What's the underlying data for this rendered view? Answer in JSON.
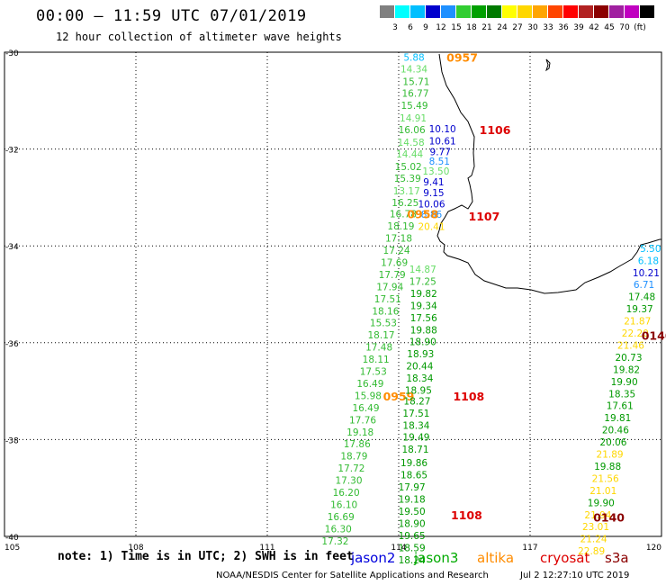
{
  "header": {
    "title": "00:00 – 11:59 UTC 07/01/2019",
    "subtitle": "12 hour collection of altimeter wave heights"
  },
  "colorbar": {
    "colors": [
      "#808080",
      "#00ffff",
      "#00bfff",
      "#0000cd",
      "#1e90ff",
      "#32cd32",
      "#00a000",
      "#007a00",
      "#ffff00",
      "#ffd700",
      "#ffa500",
      "#ff4500",
      "#ff0000",
      "#b22222",
      "#8b0000",
      "#a020a0",
      "#c000c0",
      "#000000"
    ],
    "labels": [
      "3",
      "6",
      "9",
      "12",
      "15",
      "18",
      "21",
      "24",
      "27",
      "30",
      "33",
      "36",
      "39",
      "42",
      "45",
      "70",
      "(ft)"
    ]
  },
  "axes": {
    "lat_labels": [
      "-30",
      "-32",
      "-34",
      "-36",
      "-38",
      "-40"
    ],
    "lon_labels": [
      "105",
      "108",
      "111",
      "114",
      "117",
      "120"
    ]
  },
  "passes": [
    {
      "id": "p0957",
      "time": "0957",
      "color": "#ff8c00",
      "label_lat": -30.1,
      "label_lon": 115.45,
      "points": [
        {
          "v": "5.88",
          "c": "#00bfff",
          "lat": -30.1,
          "lon": 114.35
        },
        {
          "v": "14.34",
          "c": "#66dd66",
          "lat": -30.34,
          "lon": 114.35
        },
        {
          "v": "15.71",
          "c": "#33bb33",
          "lat": -30.6,
          "lon": 114.4
        },
        {
          "v": "16.77",
          "c": "#33bb33",
          "lat": -30.85,
          "lon": 114.38
        },
        {
          "v": "15.49",
          "c": "#33bb33",
          "lat": -31.1,
          "lon": 114.36
        },
        {
          "v": "14.91",
          "c": "#66dd66",
          "lat": -31.36,
          "lon": 114.33
        },
        {
          "v": "16.06",
          "c": "#33bb33",
          "lat": -31.6,
          "lon": 114.3
        },
        {
          "v": "14.58",
          "c": "#66dd66",
          "lat": -31.86,
          "lon": 114.28
        },
        {
          "v": "14.44",
          "c": "#66dd66",
          "lat": -32.1,
          "lon": 114.25
        },
        {
          "v": "15.02",
          "c": "#33bb33",
          "lat": -32.36,
          "lon": 114.22
        },
        {
          "v": "15.39",
          "c": "#33bb33",
          "lat": -32.6,
          "lon": 114.2
        },
        {
          "v": "13.17",
          "c": "#66dd66",
          "lat": -32.86,
          "lon": 114.18
        },
        {
          "v": "16.25",
          "c": "#33bb33",
          "lat": -33.1,
          "lon": 114.15
        }
      ]
    },
    {
      "id": "p1106",
      "time": "1106",
      "color": "#dd0000",
      "label_lat": -31.6,
      "label_lon": 116.2,
      "points": [
        {
          "v": "10.10",
          "c": "#0000cd",
          "lat": -31.58,
          "lon": 115.0
        },
        {
          "v": "10.61",
          "c": "#0000cd",
          "lat": -31.83,
          "lon": 115.0
        },
        {
          "v": "9.77",
          "c": "#0000cd",
          "lat": -32.05,
          "lon": 114.95
        },
        {
          "v": "8.51",
          "c": "#1e90ff",
          "lat": -32.25,
          "lon": 114.93
        },
        {
          "v": "13.50",
          "c": "#66dd66",
          "lat": -32.45,
          "lon": 114.85
        },
        {
          "v": "9.41",
          "c": "#0000cd",
          "lat": -32.68,
          "lon": 114.8
        },
        {
          "v": "9.15",
          "c": "#0000cd",
          "lat": -32.9,
          "lon": 114.8
        },
        {
          "v": "10.06",
          "c": "#0000cd",
          "lat": -33.13,
          "lon": 114.75
        },
        {
          "v": "8.86",
          "c": "#1e90ff",
          "lat": -33.35,
          "lon": 114.75
        }
      ]
    },
    {
      "id": "p0958",
      "time": "0958",
      "color": "#ff8c00",
      "label_lat": -33.34,
      "label_lon": 114.55,
      "points": [
        {
          "v": "16.78",
          "c": "#33bb33",
          "lat": -33.34,
          "lon": 114.1
        },
        {
          "v": "18.19",
          "c": "#33bb33",
          "lat": -33.59,
          "lon": 114.05
        },
        {
          "v": "17.18",
          "c": "#33bb33",
          "lat": -33.84,
          "lon": 114.0
        },
        {
          "v": "17.24",
          "c": "#33bb33",
          "lat": -34.09,
          "lon": 113.95
        },
        {
          "v": "17.69",
          "c": "#33bb33",
          "lat": -34.34,
          "lon": 113.9
        },
        {
          "v": "17.79",
          "c": "#33bb33",
          "lat": -34.59,
          "lon": 113.85
        },
        {
          "v": "17.94",
          "c": "#33bb33",
          "lat": -34.84,
          "lon": 113.8
        },
        {
          "v": "17.51",
          "c": "#33bb33",
          "lat": -35.09,
          "lon": 113.75
        },
        {
          "v": "18.16",
          "c": "#33bb33",
          "lat": -35.34,
          "lon": 113.7
        },
        {
          "v": "15.53",
          "c": "#33bb33",
          "lat": -35.59,
          "lon": 113.65
        },
        {
          "v": "18.17",
          "c": "#33bb33",
          "lat": -35.84,
          "lon": 113.6
        },
        {
          "v": "17.48",
          "c": "#33bb33",
          "lat": -36.09,
          "lon": 113.55
        },
        {
          "v": "18.11",
          "c": "#33bb33",
          "lat": -36.34,
          "lon": 113.48
        },
        {
          "v": "17.53",
          "c": "#33bb33",
          "lat": -36.59,
          "lon": 113.42
        },
        {
          "v": "16.49",
          "c": "#33bb33",
          "lat": -36.84,
          "lon": 113.35
        }
      ]
    },
    {
      "id": "p0959",
      "time": "0959",
      "color": "#ff8c00",
      "label_lat": -37.1,
      "label_lon": 114.0,
      "points": [
        {
          "v": "15.98",
          "c": "#33bb33",
          "lat": -37.09,
          "lon": 113.3
        },
        {
          "v": "16.49",
          "c": "#33bb33",
          "lat": -37.34,
          "lon": 113.25
        },
        {
          "v": "17.76",
          "c": "#33bb33",
          "lat": -37.59,
          "lon": 113.18
        },
        {
          "v": "19.18",
          "c": "#33bb33",
          "lat": -37.84,
          "lon": 113.12
        },
        {
          "v": "17.86",
          "c": "#33bb33",
          "lat": -38.09,
          "lon": 113.05
        },
        {
          "v": "18.79",
          "c": "#33bb33",
          "lat": -38.34,
          "lon": 112.98
        },
        {
          "v": "17.72",
          "c": "#33bb33",
          "lat": -38.59,
          "lon": 112.92
        },
        {
          "v": "17.30",
          "c": "#33bb33",
          "lat": -38.84,
          "lon": 112.86
        },
        {
          "v": "16.20",
          "c": "#33bb33",
          "lat": -39.09,
          "lon": 112.8
        },
        {
          "v": "16.10",
          "c": "#33bb33",
          "lat": -39.34,
          "lon": 112.75
        },
        {
          "v": "16.69",
          "c": "#33bb33",
          "lat": -39.59,
          "lon": 112.68
        },
        {
          "v": "16.30",
          "c": "#33bb33",
          "lat": -39.84,
          "lon": 112.62
        },
        {
          "v": "17.32",
          "c": "#33bb33",
          "lat": -40.09,
          "lon": 112.55
        }
      ]
    },
    {
      "id": "p1107",
      "time": "1107",
      "color": "#dd0000",
      "label_lat": -33.38,
      "label_lon": 115.95,
      "points": [
        {
          "v": "20.41",
          "c": "#ffd700",
          "lat": -33.6,
          "lon": 114.75
        }
      ]
    },
    {
      "id": "p1108a",
      "time": "1108",
      "color": "#dd0000",
      "label_lat": -37.1,
      "label_lon": 115.6,
      "points": [
        {
          "v": "14.87",
          "c": "#66dd66",
          "lat": -34.48,
          "lon": 114.55
        },
        {
          "v": "17.25",
          "c": "#33bb33",
          "lat": -34.73,
          "lon": 114.55
        },
        {
          "v": "19.82",
          "c": "#009900",
          "lat": -34.98,
          "lon": 114.57
        },
        {
          "v": "19.34",
          "c": "#009900",
          "lat": -35.23,
          "lon": 114.57
        },
        {
          "v": "17.56",
          "c": "#009900",
          "lat": -35.48,
          "lon": 114.57
        },
        {
          "v": "19.88",
          "c": "#009900",
          "lat": -35.73,
          "lon": 114.57
        },
        {
          "v": "18.90",
          "c": "#009900",
          "lat": -35.98,
          "lon": 114.55
        },
        {
          "v": "18.93",
          "c": "#009900",
          "lat": -36.23,
          "lon": 114.5
        },
        {
          "v": "20.44",
          "c": "#009900",
          "lat": -36.48,
          "lon": 114.48
        },
        {
          "v": "18.34",
          "c": "#009900",
          "lat": -36.73,
          "lon": 114.48
        },
        {
          "v": "18.95",
          "c": "#009900",
          "lat": -36.98,
          "lon": 114.45
        },
        {
          "v": "18.27",
          "c": "#009900",
          "lat": -37.2,
          "lon": 114.42
        },
        {
          "v": "17.51",
          "c": "#009900",
          "lat": -37.45,
          "lon": 114.4
        },
        {
          "v": "18.34",
          "c": "#009900",
          "lat": -37.7,
          "lon": 114.4
        },
        {
          "v": "19.49",
          "c": "#009900",
          "lat": -37.95,
          "lon": 114.4
        },
        {
          "v": "18.71",
          "c": "#009900",
          "lat": -38.2,
          "lon": 114.38
        }
      ]
    },
    {
      "id": "p1108b",
      "time": "1108",
      "color": "#dd0000",
      "label_lat": -39.55,
      "label_lon": 115.55,
      "points": [
        {
          "v": "19.86",
          "c": "#009900",
          "lat": -38.48,
          "lon": 114.35
        },
        {
          "v": "18.65",
          "c": "#009900",
          "lat": -38.73,
          "lon": 114.35
        },
        {
          "v": "17.97",
          "c": "#009900",
          "lat": -38.98,
          "lon": 114.3
        },
        {
          "v": "19.18",
          "c": "#009900",
          "lat": -39.23,
          "lon": 114.3
        },
        {
          "v": "19.50",
          "c": "#009900",
          "lat": -39.48,
          "lon": 114.3
        },
        {
          "v": "18.90",
          "c": "#009900",
          "lat": -39.73,
          "lon": 114.3
        },
        {
          "v": "19.65",
          "c": "#009900",
          "lat": -39.98,
          "lon": 114.3
        },
        {
          "v": "18.59",
          "c": "#009900",
          "lat": -40.23,
          "lon": 114.3
        },
        {
          "v": "18.24",
          "c": "#009900",
          "lat": -40.48,
          "lon": 114.3
        }
      ]
    },
    {
      "id": "p0140a",
      "time": "0140",
      "color": "#8b0000",
      "label_lat": -35.85,
      "label_lon": 119.9,
      "points": [
        {
          "v": "5.50",
          "c": "#00bfff",
          "lat": -34.05,
          "lon": 119.75
        },
        {
          "v": "6.18",
          "c": "#00bfff",
          "lat": -34.3,
          "lon": 119.7
        },
        {
          "v": "10.21",
          "c": "#0000cd",
          "lat": -34.55,
          "lon": 119.65
        },
        {
          "v": "6.71",
          "c": "#1e90ff",
          "lat": -34.8,
          "lon": 119.6
        },
        {
          "v": "17.48",
          "c": "#009900",
          "lat": -35.05,
          "lon": 119.55
        },
        {
          "v": "19.37",
          "c": "#009900",
          "lat": -35.3,
          "lon": 119.5
        },
        {
          "v": "21.87",
          "c": "#ffd700",
          "lat": -35.55,
          "lon": 119.45
        },
        {
          "v": "22.20",
          "c": "#ffd700",
          "lat": -35.8,
          "lon": 119.4
        },
        {
          "v": "21.46",
          "c": "#ffd700",
          "lat": -36.05,
          "lon": 119.3
        },
        {
          "v": "20.73",
          "c": "#009900",
          "lat": -36.3,
          "lon": 119.25
        },
        {
          "v": "19.82",
          "c": "#009900",
          "lat": -36.55,
          "lon": 119.2
        },
        {
          "v": "19.90",
          "c": "#009900",
          "lat": -36.8,
          "lon": 119.15
        },
        {
          "v": "18.35",
          "c": "#009900",
          "lat": -37.05,
          "lon": 119.1
        },
        {
          "v": "17.61",
          "c": "#009900",
          "lat": -37.3,
          "lon": 119.05
        },
        {
          "v": "19.81",
          "c": "#009900",
          "lat": -37.55,
          "lon": 119.0
        },
        {
          "v": "20.46",
          "c": "#009900",
          "lat": -37.8,
          "lon": 118.95
        },
        {
          "v": "20.06",
          "c": "#009900",
          "lat": -38.05,
          "lon": 118.9
        }
      ]
    },
    {
      "id": "p0140b",
      "time": "0140",
      "color": "#8b0000",
      "label_lat": -39.6,
      "label_lon": 118.8,
      "points": [
        {
          "v": "21.89",
          "c": "#ffd700",
          "lat": -38.3,
          "lon": 118.82
        },
        {
          "v": "19.88",
          "c": "#009900",
          "lat": -38.55,
          "lon": 118.77
        },
        {
          "v": "21.56",
          "c": "#ffd700",
          "lat": -38.8,
          "lon": 118.72
        },
        {
          "v": "21.01",
          "c": "#ffd700",
          "lat": -39.05,
          "lon": 118.67
        },
        {
          "v": "19.90",
          "c": "#009900",
          "lat": -39.3,
          "lon": 118.62
        },
        {
          "v": "21.94",
          "c": "#ffd700",
          "lat": -39.55,
          "lon": 118.55
        },
        {
          "v": "23.01",
          "c": "#ffd700",
          "lat": -39.8,
          "lon": 118.5
        },
        {
          "v": "21.24",
          "c": "#ffd700",
          "lat": -40.05,
          "lon": 118.45
        },
        {
          "v": "22.89",
          "c": "#ffd700",
          "lat": -40.3,
          "lon": 118.4
        }
      ]
    }
  ],
  "note": "note: 1) Time is in UTC; 2) SWH is in feet",
  "satellites": [
    {
      "name": "jason2",
      "color": "#0000dd"
    },
    {
      "name": "jason3",
      "color": "#00aa00"
    },
    {
      "name": "altika",
      "color": "#ff8c00"
    },
    {
      "name": "cryosat",
      "color": "#dd0000"
    },
    {
      "name": "s3a",
      "color": "#8b0000"
    }
  ],
  "credit": "NOAA/NESDIS Center for Satellite Applications and Research",
  "credit_date": "Jul  2 12:27:10 UTC 2019"
}
